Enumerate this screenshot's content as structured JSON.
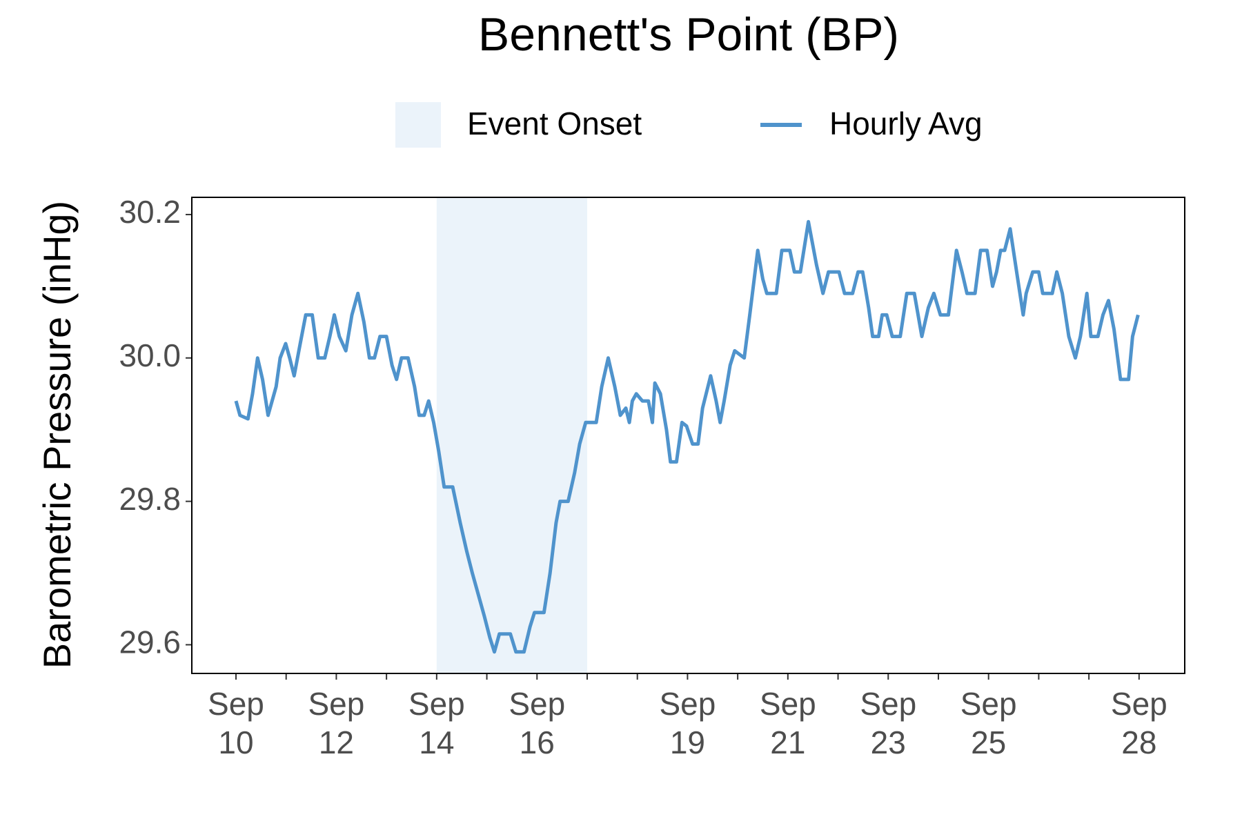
{
  "chart_data": {
    "type": "line",
    "title": "Bennett's Point (BP)",
    "y_label": "Barometric Pressure (inHg)",
    "shading": {
      "name": "Event Onset",
      "color": "#ebf3fa",
      "x": [
        14,
        17
      ]
    },
    "x": [
      10.0,
      10.08,
      10.24,
      10.33,
      10.43,
      10.53,
      10.64,
      10.8,
      10.88,
      10.99,
      11.07,
      11.16,
      11.28,
      11.39,
      11.52,
      11.64,
      11.77,
      11.87,
      11.96,
      12.06,
      12.19,
      12.31,
      12.43,
      12.55,
      12.66,
      12.76,
      12.87,
      13.0,
      13.11,
      13.2,
      13.3,
      13.43,
      13.56,
      13.65,
      13.75,
      13.84,
      13.94,
      14.04,
      14.15,
      14.32,
      14.47,
      14.6,
      14.71,
      14.83,
      14.95,
      15.06,
      15.15,
      15.25,
      15.47,
      15.58,
      15.74,
      15.86,
      15.95,
      16.14,
      16.26,
      16.38,
      16.46,
      16.62,
      16.75,
      16.85,
      16.97,
      17.18,
      17.29,
      17.42,
      17.55,
      17.66,
      17.77,
      17.84,
      17.9,
      17.98,
      18.1,
      18.22,
      18.3,
      18.35,
      18.46,
      18.58,
      18.66,
      18.78,
      18.89,
      18.98,
      19.1,
      19.21,
      19.3,
      19.46,
      19.57,
      19.65,
      19.73,
      19.85,
      19.94,
      20.13,
      20.24,
      20.4,
      20.5,
      20.58,
      20.77,
      20.88,
      21.04,
      21.13,
      21.25,
      21.41,
      21.57,
      21.7,
      21.81,
      22.02,
      22.13,
      22.29,
      22.4,
      22.49,
      22.61,
      22.69,
      22.81,
      22.88,
      22.97,
      23.08,
      23.24,
      23.37,
      23.52,
      23.67,
      23.8,
      23.91,
      24.04,
      24.2,
      24.36,
      24.47,
      24.57,
      24.73,
      24.84,
      24.97,
      25.08,
      25.16,
      25.24,
      25.32,
      25.43,
      25.56,
      25.69,
      25.75,
      25.88,
      26.0,
      26.08,
      26.27,
      26.36,
      26.47,
      26.6,
      26.73,
      26.83,
      26.96,
      27.04,
      27.18,
      27.28,
      27.39,
      27.5,
      27.63,
      27.79,
      27.87,
      27.98
    ],
    "series": [
      {
        "name": "Hourly Avg",
        "color": "#4f93cc",
        "values": [
          29.94,
          29.92,
          29.915,
          29.95,
          30.0,
          29.97,
          29.92,
          29.96,
          30.0,
          30.02,
          30.0,
          29.975,
          30.02,
          30.06,
          30.06,
          30.0,
          30.0,
          30.03,
          30.06,
          30.03,
          30.01,
          30.06,
          30.09,
          30.05,
          30.0,
          30.0,
          30.03,
          30.03,
          29.99,
          29.97,
          30.0,
          30.0,
          29.96,
          29.92,
          29.92,
          29.94,
          29.91,
          29.87,
          29.82,
          29.82,
          29.77,
          29.73,
          29.7,
          29.67,
          29.64,
          29.61,
          29.59,
          29.615,
          29.615,
          29.59,
          29.59,
          29.625,
          29.645,
          29.645,
          29.7,
          29.77,
          29.8,
          29.8,
          29.84,
          29.88,
          29.91,
          29.91,
          29.96,
          30.0,
          29.96,
          29.92,
          29.93,
          29.91,
          29.94,
          29.95,
          29.94,
          29.94,
          29.91,
          29.965,
          29.95,
          29.9,
          29.855,
          29.855,
          29.91,
          29.905,
          29.88,
          29.88,
          29.93,
          29.975,
          29.94,
          29.91,
          29.94,
          29.99,
          30.01,
          30.0,
          30.06,
          30.15,
          30.11,
          30.09,
          30.09,
          30.15,
          30.15,
          30.12,
          30.12,
          30.19,
          30.13,
          30.09,
          30.12,
          30.12,
          30.09,
          30.09,
          30.12,
          30.12,
          30.07,
          30.03,
          30.03,
          30.06,
          30.06,
          30.03,
          30.03,
          30.09,
          30.09,
          30.03,
          30.07,
          30.09,
          30.06,
          30.06,
          30.15,
          30.12,
          30.09,
          30.09,
          30.15,
          30.15,
          30.1,
          30.12,
          30.15,
          30.15,
          30.18,
          30.12,
          30.06,
          30.09,
          30.12,
          30.12,
          30.09,
          30.09,
          30.12,
          30.09,
          30.03,
          30.0,
          30.03,
          30.09,
          30.03,
          30.03,
          30.06,
          30.08,
          30.04,
          29.97,
          29.97,
          30.03,
          30.06
        ]
      }
    ],
    "xlim": [
      9.12,
      28.91
    ],
    "xticks": [
      {
        "value": 10,
        "label": "Sep 10"
      },
      {
        "value": 12,
        "label": "Sep 12"
      },
      {
        "value": 14,
        "label": "Sep 14"
      },
      {
        "value": 16,
        "label": "Sep 16"
      },
      {
        "value": 19,
        "label": "Sep 19"
      },
      {
        "value": 21,
        "label": "Sep 21"
      },
      {
        "value": 23,
        "label": "Sep 23"
      },
      {
        "value": 25,
        "label": "Sep 25"
      },
      {
        "value": 28,
        "label": "Sep 28"
      }
    ],
    "xminorticks": [
      11,
      13,
      15,
      17,
      18,
      20,
      22,
      24,
      26,
      27
    ],
    "ylim": [
      29.56,
      30.224
    ],
    "yticks": [
      {
        "value": 29.6,
        "label": "29.6"
      },
      {
        "value": 29.8,
        "label": "29.8"
      },
      {
        "value": 30.0,
        "label": "30.0"
      },
      {
        "value": 30.2,
        "label": "30.2"
      }
    ],
    "grid": false
  }
}
